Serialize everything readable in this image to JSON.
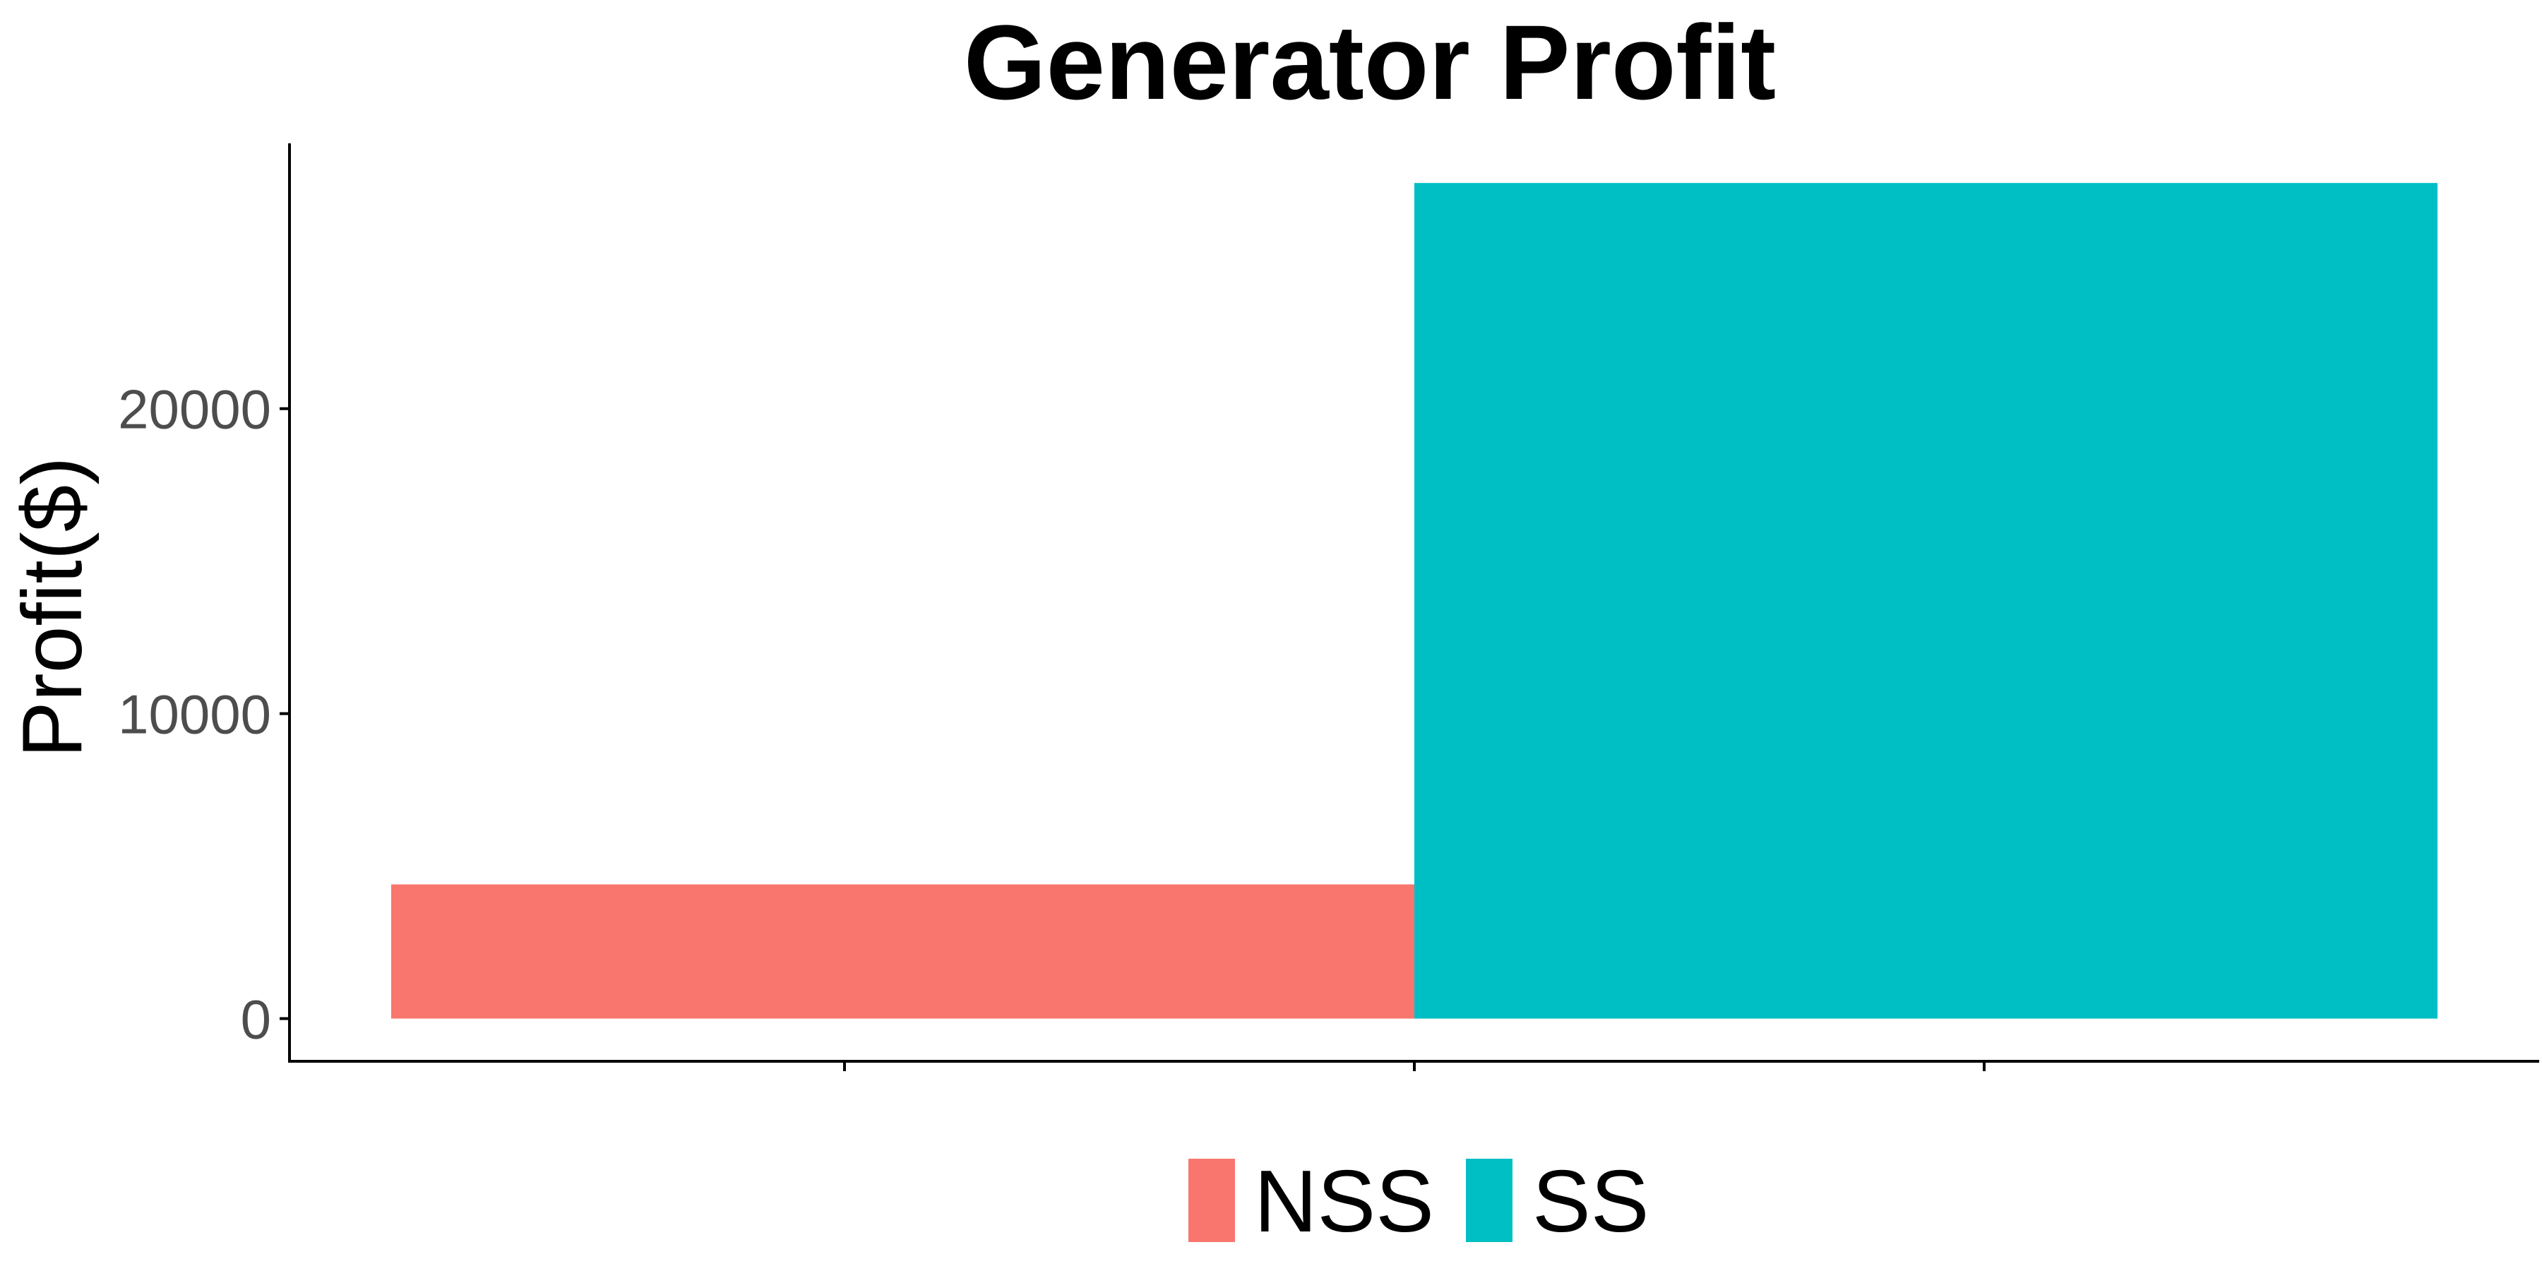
{
  "chart_data": {
    "type": "bar",
    "title": "Generator Profit",
    "xlabel": "",
    "ylabel": "Profit($)",
    "ylim": [
      -1400,
      28700
    ],
    "yticks": [
      0,
      10000,
      20000
    ],
    "ytick_labels": [
      "0",
      "10000",
      "20000"
    ],
    "series": [
      {
        "name": "NSS",
        "value": 4400,
        "color": "#F8766D"
      },
      {
        "name": "SS",
        "value": 27400,
        "color": "#00BFC4"
      }
    ],
    "legend": {
      "position": "bottom",
      "entries": [
        "NSS",
        "SS"
      ]
    },
    "grid": false
  }
}
